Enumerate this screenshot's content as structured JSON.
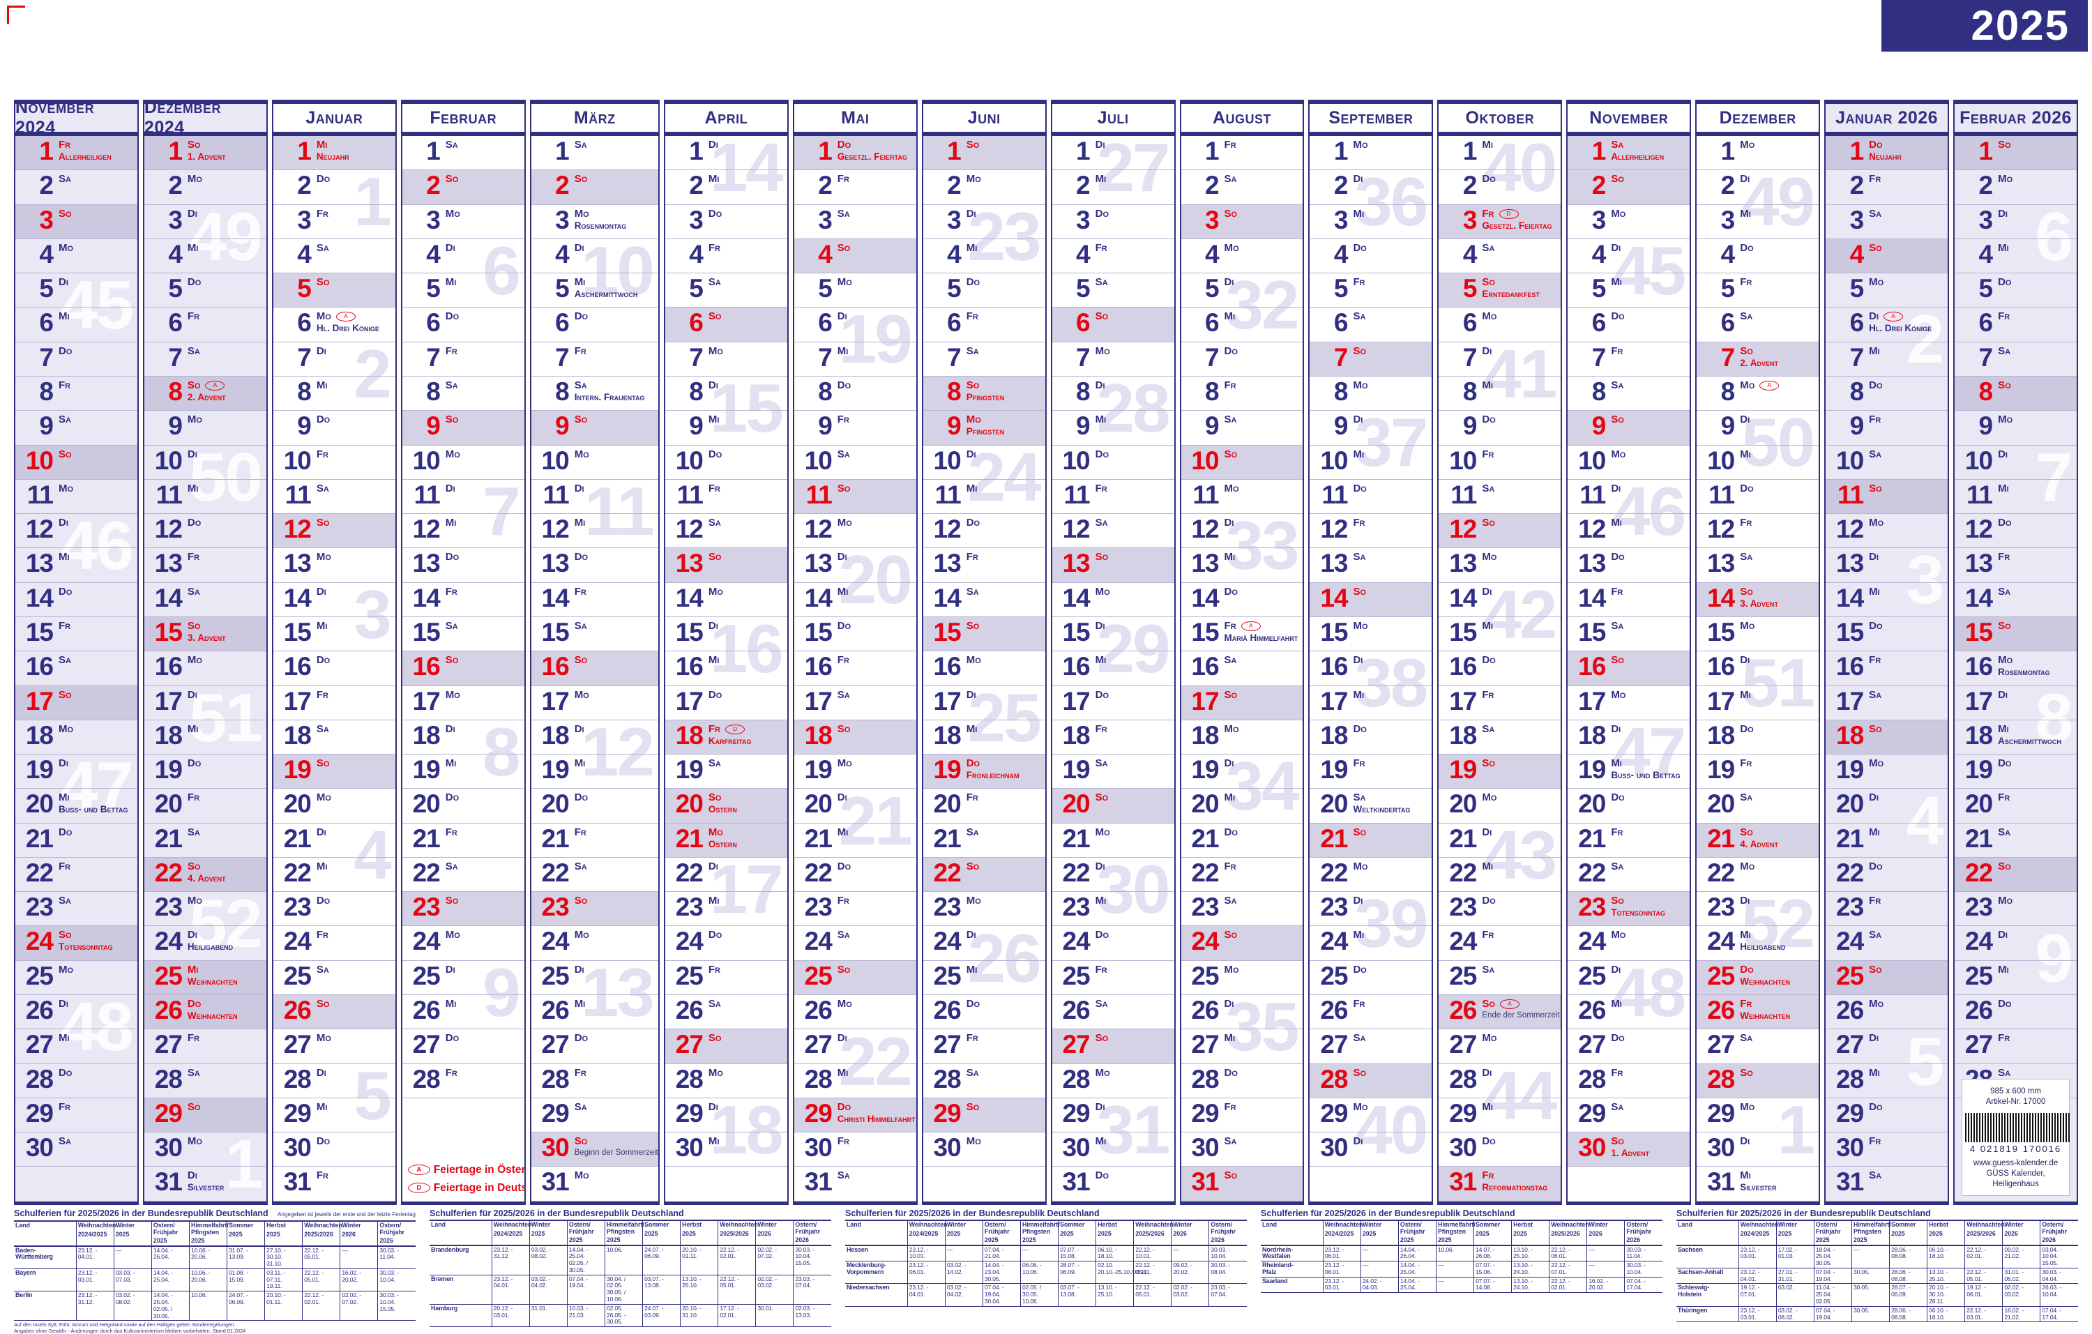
{
  "title": "2025",
  "weekdays": [
    "Mo",
    "Di",
    "Mi",
    "Do",
    "Fr",
    "Sa",
    "So"
  ],
  "legend": {
    "austria_marker": "A",
    "austria_label": "Feiertage in Österreich",
    "germany_marker": "D",
    "germany_label": "Feiertage in Deutschland"
  },
  "publisher": {
    "size": "985 x 600 mm",
    "article": "Artikel-Nr. 17000",
    "ean": "4 021819 170016",
    "url": "www.guess-kalender.de",
    "name": "GÜSS Kalender, Heiligenhaus"
  },
  "months": [
    {
      "name": "November 2024",
      "start": 4,
      "len": 30,
      "shaded": true,
      "weeks": [
        [
          45,
          5
        ],
        [
          46,
          12
        ],
        [
          47,
          19
        ],
        [
          48,
          26
        ]
      ],
      "specials": {
        "1": {
          "t": "Allerheiligen",
          "r": true,
          "hl": true
        },
        "20": {
          "t": "Buss- und Bettag"
        },
        "24": {
          "t": "Totensonntag",
          "r": true,
          "hl": true
        }
      }
    },
    {
      "name": "Dezember 2024",
      "start": 6,
      "len": 31,
      "shaded": true,
      "weeks": [
        [
          49,
          3
        ],
        [
          50,
          10
        ],
        [
          51,
          17
        ],
        [
          52,
          23
        ],
        [
          1,
          30
        ]
      ],
      "specials": {
        "1": {
          "t": "1. Advent",
          "r": true,
          "hl": true
        },
        "8": {
          "t": "2. Advent",
          "r": true,
          "hl": true,
          "m": "A"
        },
        "15": {
          "t": "3. Advent",
          "r": true,
          "hl": true
        },
        "22": {
          "t": "4. Advent",
          "r": true,
          "hl": true
        },
        "24": {
          "t": "Heiligabend"
        },
        "25": {
          "t": "Weihnachten",
          "r": true,
          "hl": true
        },
        "26": {
          "t": "Weihnachten",
          "r": true,
          "hl": true
        },
        "31": {
          "t": "Silvester"
        }
      }
    },
    {
      "name": "Januar",
      "start": 2,
      "len": 31,
      "weeks": [
        [
          1,
          2
        ],
        [
          2,
          7
        ],
        [
          3,
          14
        ],
        [
          4,
          21
        ],
        [
          5,
          28
        ]
      ],
      "specials": {
        "1": {
          "t": "Neujahr",
          "r": true,
          "hl": true
        },
        "6": {
          "t": "Hl. Drei Könige",
          "m": "A"
        }
      }
    },
    {
      "name": "Februar",
      "start": 5,
      "len": 28,
      "legend": true,
      "weeks": [
        [
          6,
          4
        ],
        [
          7,
          11
        ],
        [
          8,
          18
        ],
        [
          9,
          25
        ]
      ],
      "specials": {}
    },
    {
      "name": "März",
      "start": 5,
      "len": 31,
      "weeks": [
        [
          10,
          4
        ],
        [
          11,
          11
        ],
        [
          12,
          18
        ],
        [
          13,
          25
        ]
      ],
      "specials": {
        "3": {
          "t": "Rosenmontag"
        },
        "5": {
          "t": "Aschermittwoch"
        },
        "8": {
          "t": "Intern. Frauentag"
        },
        "30": {
          "t": "Beginn der Sommerzeit",
          "small": true
        }
      }
    },
    {
      "name": "April",
      "start": 1,
      "len": 30,
      "weeks": [
        [
          14,
          1
        ],
        [
          15,
          8
        ],
        [
          16,
          15
        ],
        [
          17,
          22
        ],
        [
          18,
          29
        ]
      ],
      "specials": {
        "18": {
          "t": "Karfreitag",
          "r": true,
          "hl": true,
          "m": "D"
        },
        "20": {
          "t": "Ostern"
        },
        "21": {
          "t": "Ostern",
          "r": true,
          "hl": true
        }
      }
    },
    {
      "name": "Mai",
      "start": 3,
      "len": 31,
      "weeks": [
        [
          19,
          6
        ],
        [
          20,
          13
        ],
        [
          21,
          20
        ],
        [
          22,
          27
        ]
      ],
      "specials": {
        "1": {
          "t": "Gesetzl. Feiertag",
          "r": true,
          "hl": true
        },
        "29": {
          "t": "Christi Himmelfahrt",
          "r": true,
          "hl": true
        }
      }
    },
    {
      "name": "Juni",
      "start": 6,
      "len": 30,
      "weeks": [
        [
          23,
          3
        ],
        [
          24,
          10
        ],
        [
          25,
          17
        ],
        [
          26,
          24
        ]
      ],
      "specials": {
        "8": {
          "t": "Pfingsten"
        },
        "9": {
          "t": "Pfingsten",
          "r": true,
          "hl": true
        },
        "19": {
          "t": "Fronleichnam",
          "r": true,
          "hl": true
        }
      }
    },
    {
      "name": "Juli",
      "start": 1,
      "len": 31,
      "weeks": [
        [
          27,
          1
        ],
        [
          28,
          8
        ],
        [
          29,
          15
        ],
        [
          30,
          22
        ],
        [
          31,
          29
        ]
      ],
      "specials": {}
    },
    {
      "name": "August",
      "start": 4,
      "len": 31,
      "weeks": [
        [
          32,
          5
        ],
        [
          33,
          12
        ],
        [
          34,
          19
        ],
        [
          35,
          26
        ]
      ],
      "specials": {
        "15": {
          "t": "Mariä Himmelfahrt",
          "m": "A"
        }
      }
    },
    {
      "name": "September",
      "start": 0,
      "len": 30,
      "weeks": [
        [
          36,
          2
        ],
        [
          37,
          9
        ],
        [
          38,
          16
        ],
        [
          39,
          23
        ],
        [
          40,
          29
        ]
      ],
      "specials": {
        "20": {
          "t": "Weltkindertag"
        }
      }
    },
    {
      "name": "Oktober",
      "start": 2,
      "len": 31,
      "weeks": [
        [
          40,
          1
        ],
        [
          41,
          7
        ],
        [
          42,
          14
        ],
        [
          43,
          21
        ],
        [
          44,
          28
        ]
      ],
      "specials": {
        "3": {
          "t": "Gesetzl. Feiertag",
          "r": true,
          "hl": true,
          "m": "D"
        },
        "5": {
          "t": "Erntedankfest"
        },
        "26": {
          "t": "Ende der Sommerzeit",
          "small": true,
          "m": "A"
        },
        "31": {
          "t": "Reformationstag",
          "r": true,
          "hl": true
        }
      }
    },
    {
      "name": "November",
      "start": 5,
      "len": 30,
      "weeks": [
        [
          45,
          4
        ],
        [
          46,
          11
        ],
        [
          47,
          18
        ],
        [
          48,
          25
        ]
      ],
      "specials": {
        "1": {
          "t": "Allerheiligen",
          "r": true,
          "hl": true
        },
        "19": {
          "t": "Buss- und Bettag"
        },
        "23": {
          "t": "Totensonntag",
          "r": true,
          "hl": true
        },
        "30": {
          "t": "1. Advent"
        }
      }
    },
    {
      "name": "Dezember",
      "start": 0,
      "len": 31,
      "weeks": [
        [
          49,
          2
        ],
        [
          50,
          9
        ],
        [
          51,
          16
        ],
        [
          52,
          23
        ],
        [
          1,
          29
        ]
      ],
      "specials": {
        "7": {
          "t": "2. Advent"
        },
        "8": {
          "m": "A"
        },
        "14": {
          "t": "3. Advent"
        },
        "21": {
          "t": "4. Advent"
        },
        "24": {
          "t": "Heiligabend"
        },
        "25": {
          "t": "Weihnachten",
          "r": true,
          "hl": true
        },
        "26": {
          "t": "Weihnachten",
          "r": true,
          "hl": true
        },
        "31": {
          "t": "Silvester"
        }
      }
    },
    {
      "name": "Januar 2026",
      "start": 3,
      "len": 31,
      "shaded": true,
      "weeks": [
        [
          2,
          6
        ],
        [
          3,
          13
        ],
        [
          4,
          20
        ],
        [
          5,
          27
        ]
      ],
      "specials": {
        "1": {
          "t": "Neujahr",
          "r": true,
          "hl": true
        },
        "6": {
          "t": "Hl. Drei Könige",
          "m": "A"
        }
      }
    },
    {
      "name": "Februar 2026",
      "start": 6,
      "len": 28,
      "shaded": true,
      "info": true,
      "weeks": [
        [
          6,
          3
        ],
        [
          7,
          10
        ],
        [
          8,
          17
        ],
        [
          9,
          24
        ]
      ],
      "specials": {
        "16": {
          "t": "Rosenmontag"
        },
        "18": {
          "t": "Aschermittwoch"
        }
      }
    }
  ],
  "schulferien": {
    "title": "Schulferien für 2025/2026 in der Bundesrepublik Deutschland",
    "note": "Angegeben ist jeweils der erste und der letzte Ferientag",
    "headers": [
      [
        "Land",
        ""
      ],
      [
        "Weihnachten",
        "2024/2025"
      ],
      [
        "Winter",
        "2025"
      ],
      [
        "Ostern/\nFrühjahr",
        "2025"
      ],
      [
        "Himmelfahrt/\nPfingsten",
        "2025"
      ],
      [
        "Sommer",
        "2025"
      ],
      [
        "Herbst",
        "2025"
      ],
      [
        "Weihnachten",
        "2025/2026"
      ],
      [
        "Winter",
        "2026"
      ],
      [
        "Ostern/\nFrühjahr",
        "2026"
      ]
    ],
    "footnotes": [
      "Auf den Inseln Sylt, Föhr, Amrum und Helgoland sowie auf den Halligen gelten Sonderregelungen.",
      "Angaben ohne Gewähr - Änderungen durch das Kultusministerium bleiben vorbehalten. Stand 01.2024"
    ],
    "blocks": [
      {
        "rows": [
          {
            "land": "Baden-\nWürttemberg",
            "cells": [
              "23.12. - 04.01.",
              "—",
              "14.04. - 26.04.",
              "10.06. - 20.06.",
              "31.07. - 13.09.",
              "27.10. - 30.10.\n31.10.",
              "22.12. - 05.01.",
              "—",
              "30.03. - 11.04."
            ]
          },
          {
            "land": "Bayern",
            "cells": [
              "23.12. - 03.01.",
              "03.03. - 07.03.",
              "14.04. - 25.04.",
              "10.06. - 20.06.",
              "01.08. - 15.09.",
              "03.11. - 07.11.\n19.11.",
              "22.12. - 05.01.",
              "16.02. - 20.02.",
              "30.03. - 10.04."
            ]
          },
          {
            "land": "Berlin",
            "cells": [
              "23.12. - 31.12.",
              "03.02. - 08.02.",
              "14.04. - 25.04.\n02.05. / 30.05.",
              "10.06.",
              "24.07. - 06.09.",
              "20.10. - 01.11.",
              "22.12. - 02.01.",
              "02.02. - 07.02.",
              "30.03. - 10.04.\n15.05."
            ]
          }
        ]
      },
      {
        "rows": [
          {
            "land": "Brandenburg",
            "cells": [
              "23.12. - 31.12.",
              "03.02. - 08.02.",
              "14.04. - 25.04.\n02.05. / 30.05.",
              "10.06.",
              "24.07. - 06.09.",
              "20.10. - 01.11.",
              "22.12. - 02.01.",
              "02.02. - 07.02.",
              "30.03. - 10.04.\n15.05."
            ]
          },
          {
            "land": "Bremen",
            "cells": [
              "23.12. - 04.01.",
              "03.02. - 04.02.",
              "07.04. - 19.04.",
              "30.04. / 02.05.\n30.05. / 10.06.",
              "03.07. - 13.08.",
              "13.10. - 25.10.",
              "22.12. - 05.01.",
              "02.02. - 03.02.",
              "23.03. - 07.04."
            ]
          },
          {
            "land": "Hamburg",
            "cells": [
              "20.12. - 03.01.",
              "31.01.",
              "10.03. - 21.03.",
              "02.05.\n26.05. - 30.05.",
              "24.07. - 03.09.",
              "20.10. - 31.10.",
              "17.12. - 02.01.",
              "30.01.",
              "02.03. - 13.03."
            ]
          }
        ]
      },
      {
        "rows": [
          {
            "land": "Hessen",
            "cells": [
              "23.12. - 10.01.",
              "—",
              "07.04. - 21.04.",
              "—",
              "07.07. - 15.08.",
              "06.10. - 18.10.",
              "22.12. - 10.01.",
              "—",
              "30.03. - 10.04."
            ]
          },
          {
            "land": "Mecklenburg-\nVorpommern",
            "cells": [
              "23.12. - 06.01.",
              "03.02. - 14.02.",
              "14.04. - 23.04.\n30.05.",
              "06.06. - 10.06.",
              "28.07. - 06.09.",
              "02.10.\n20.10.-25.10./03.11.",
              "22.12. - 05.01.",
              "09.02. - 20.02.",
              "30.03. - 08.04."
            ]
          },
          {
            "land": "Niedersachsen",
            "cells": [
              "23.12. - 04.01.",
              "03.02. - 04.02.",
              "07.04. - 19.04.\n30.04.",
              "02.05. / 30.05.\n10.06.",
              "03.07. - 13.08.",
              "13.10. - 25.10.",
              "22.12. - 05.01.",
              "02.02. - 03.02.",
              "23.03. - 07.04."
            ]
          }
        ]
      },
      {
        "rows": [
          {
            "land": "Nordrhein-\nWestfalen",
            "cells": [
              "23.12. - 06.01.",
              "—",
              "14.04. - 26.04.",
              "10.06.",
              "14.07. - 26.08.",
              "13.10. - 25.10.",
              "22.12. - 06.01.",
              "—",
              "30.03. - 11.04."
            ]
          },
          {
            "land": "Rheinland-\nPfalz",
            "cells": [
              "23.12. - 08.01.",
              "—",
              "14.04. - 25.04.",
              "—",
              "07.07. - 15.08.",
              "13.10. - 24.10.",
              "22.12. - 07.01.",
              "—",
              "30.03. - 10.04."
            ]
          },
          {
            "land": "Saarland",
            "cells": [
              "23.12. - 03.01.",
              "24.02. - 04.03.",
              "14.04. - 25.04.",
              "—",
              "07.07. - 14.08.",
              "13.10. - 24.10.",
              "22.12. - 02.01.",
              "16.02. - 20.02.",
              "07.04. - 17.04."
            ]
          }
        ]
      },
      {
        "rows": [
          {
            "land": "Sachsen",
            "cells": [
              "23.12. - 03.01.",
              "17.02. - 01.03.",
              "18.04. - 25.04.\n30.05.",
              "—",
              "28.06. - 08.08.",
              "06.10. - 18.10.",
              "22.12. - 02.01.",
              "09.02. - 21.02.",
              "03.04. - 10.04.\n15.05."
            ]
          },
          {
            "land": "Sachsen-Anhalt",
            "cells": [
              "23.12. - 04.01.",
              "27.01. - 31.01.",
              "07.04. - 19.04.",
              "30.05.",
              "28.06. - 08.08.",
              "13.10. - 25.10.",
              "22.12. - 05.01.",
              "31.01. - 06.02.",
              "30.03. - 04.04."
            ]
          },
          {
            "land": "Schleswig-\nHolstein",
            "cells": [
              "19.12. - 07.01.",
              "03.02.",
              "11.04. - 25.04.\n02.05.",
              "30.05.",
              "28.07. - 06.09.",
              "20.10. - 30.10.\n28.11.",
              "19.12. - 06.01.",
              "02.02. - 03.02.",
              "26.03. - 10.04."
            ]
          },
          {
            "land": "Thüringen",
            "cells": [
              "23.12. - 03.01.",
              "03.02. - 08.02.",
              "07.04. - 19.04.",
              "30.05.",
              "28.06. - 08.08.",
              "06.10. - 18.10.",
              "22.12. - 03.01.",
              "16.02. - 21.02.",
              "07.04. - 17.04."
            ]
          }
        ]
      }
    ]
  }
}
